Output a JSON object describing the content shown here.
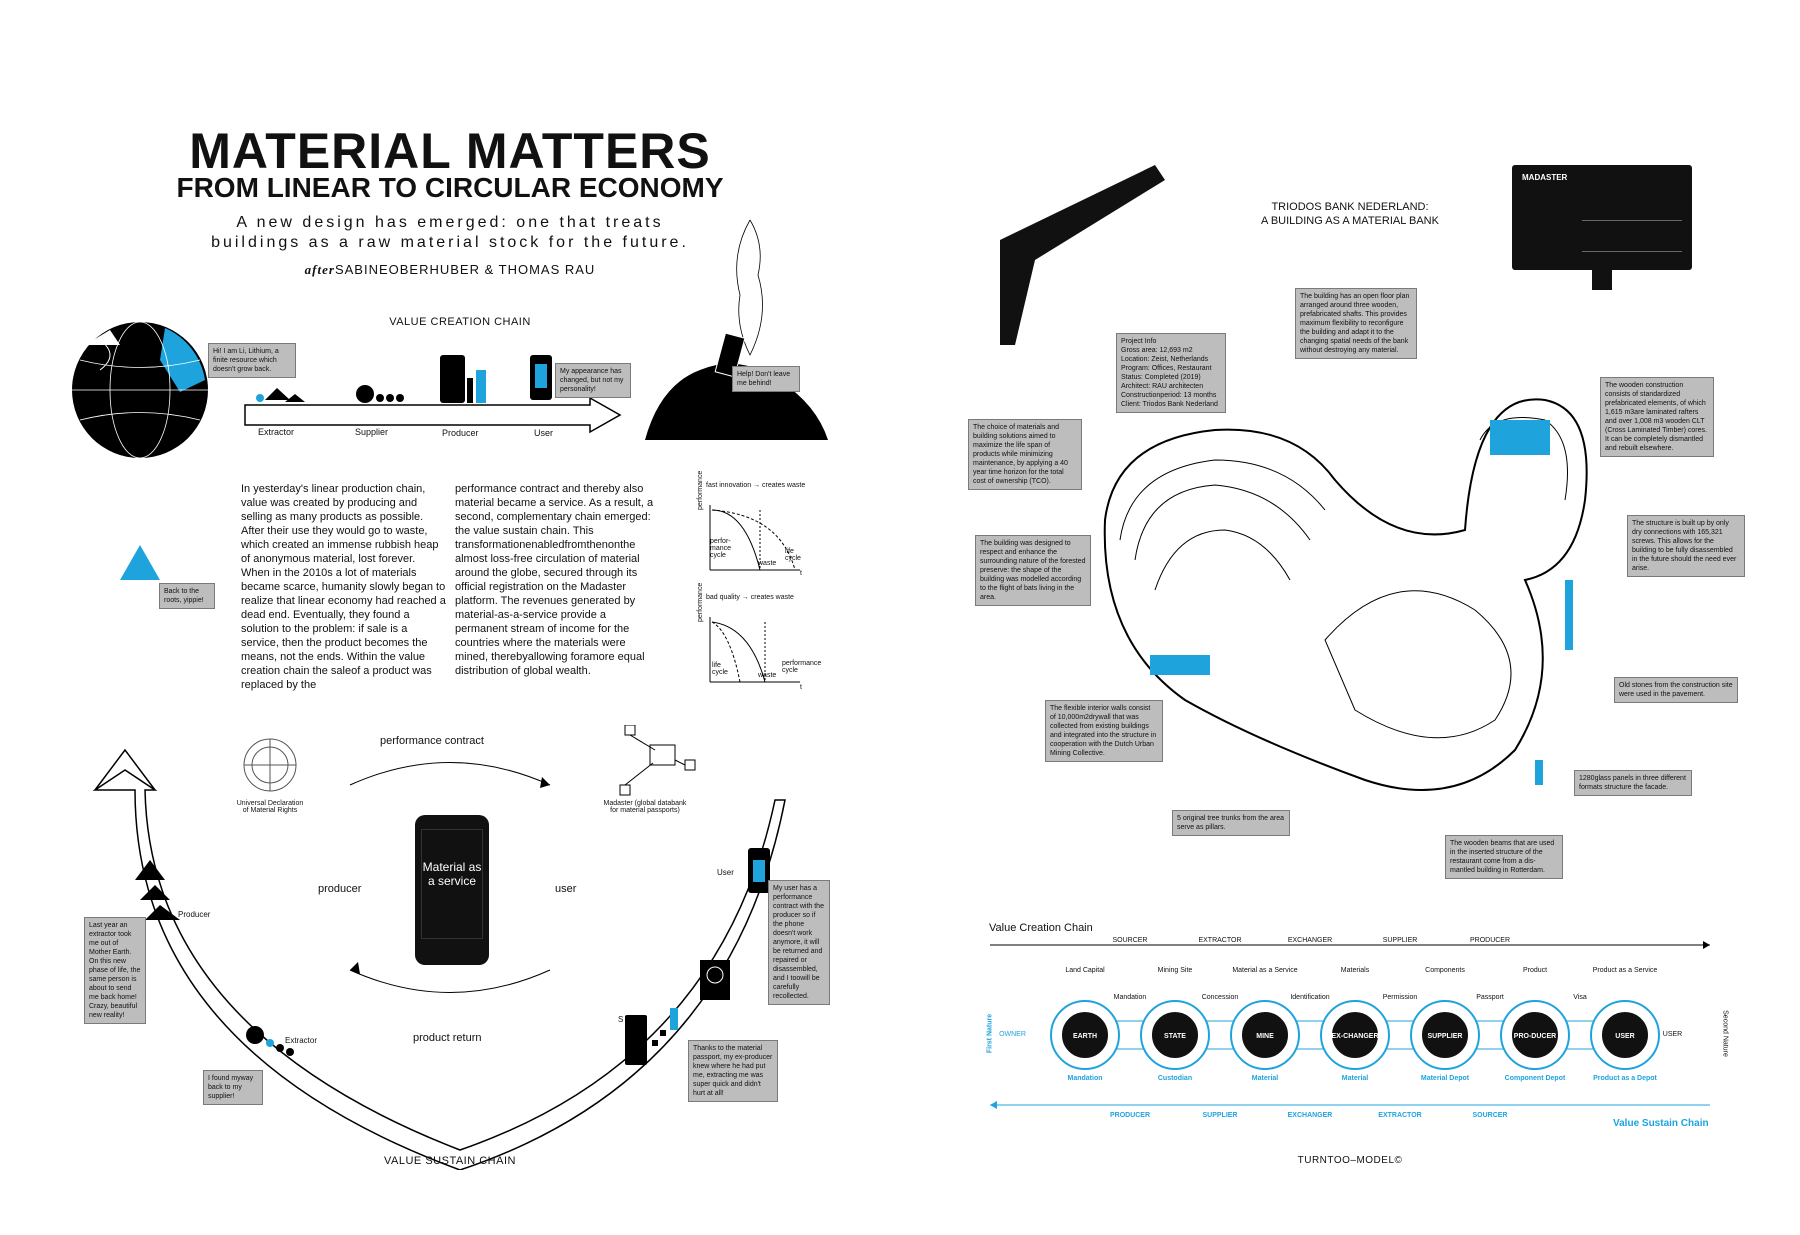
{
  "poster": {
    "title": "MATERIAL MATTERS",
    "subtitle": "FROM LINEAR TO CIRCULAR ECONOMY",
    "tagline": "A new design has emerged: one that treats buildings as a raw material stock for the future.",
    "authors_prefix": "after",
    "authors": "SABINEOBERHUBER & THOMAS RAU"
  },
  "value_creation": {
    "heading": "VALUE CREATION CHAIN",
    "stages": [
      "Extractor",
      "Supplier",
      "Producer",
      "User"
    ],
    "bubble_lithium": "Hi! I am Li, Lithium, a finite resource which doesn't grow back.",
    "bubble_user": "My appearance has changed, but not my personality!",
    "bubble_help": "Help! Don't leave me behind!",
    "bubble_back": "Back to the roots, yippie!"
  },
  "body": {
    "col1": "In yesterday's linear production chain, value was created by producing and selling as many products as possible. After their use they would go to waste, which created an immense rubbish heap of anonymous material, lost forever. When in the 2010s a lot of materials became scarce, humanity slowly began to realize that linear economy had reached a dead end. Eventually, they found a solution to the problem: if sale is a service, then the product becomes the means, not the ends. Within the value creation chain the saleof a product was replaced by the",
    "col2": "performance contract and thereby also material became a service. As a result, a second, complementary chain emerged: the value sustain chain. This transformationenabledfromthenonthe almost loss-free circulation of material around the globe, secured through its official registration on the Madaster platform. The revenues generated by material-as-a-service provide a permanent stream of income for the countries where the materials were mined, therebyallowing foramore equal distribution of global wealth."
  },
  "graphs": [
    {
      "title": "fast innovation → creates waste",
      "ylabel": "performance",
      "xlabel": "t",
      "labels": [
        "perfor-mance cycle",
        "waste",
        "life cycle"
      ]
    },
    {
      "title": "bad quality → creates waste",
      "ylabel": "performance",
      "xlabel": "t",
      "labels": [
        "life cycle",
        "waste",
        "performance cycle"
      ]
    }
  ],
  "sustain": {
    "heading": "VALUE SUSTAIN CHAIN",
    "performance_contract": "performance contract",
    "product_return": "product return",
    "producer": "producer",
    "user": "user",
    "phone_text": "Material as a service",
    "un_label": "Universal Declaration of Material Rights",
    "madaster_label": "Madaster (global databank for material passports)",
    "label_user": "User",
    "label_producer": "Producer",
    "label_extractor": "Extractor",
    "label_s": "S",
    "note_user": "My user has a performance contract with the producer so if the phone doesn't work anymore, it will be returned and repaired or disassembled, and I toowill be carefully recollected.",
    "note_passport": "Thanks to the material passport, my ex-producer knew where he had put me, extracting me was super quick and didn't hurt at all!",
    "note_extractor": "Last year an extractor took me out of Mother Earth. On this new phase of life, the same person is about to send me back home! Crazy, beautiful new reality!",
    "note_found": "I found myway back to my supplier!"
  },
  "triodos": {
    "heading_line1": "TRIODOS BANK NEDERLAND:",
    "heading_line2": "A BUILDING AS A MATERIAL BANK",
    "madaster_screen": "MADASTER",
    "project_info": "Project Info\nGross area: 12,693 m2\nLocation: Zeist, Netherlands\nProgram: Offices, Restaurant\nStatus: Completed (2019)\nArchitect: RAU architecten\nConstructionperiod: 13 months\nClient: Triodos Bank Nederland",
    "note_floorplan": "The building has an open floor plan arranged around three wooden, prefabricated shafts. This provides maximum flexibility to reconfigure the building and adapt it to the changing spatial needs of the bank without destroying any material.",
    "note_choice": "The choice of materials and building solutions aimed to maximize the life span of products while minimizing maintenance, by applying a 40 year time horizon for the total cost of ownership (TCO).",
    "note_wooden": "The wooden construction consists of standardized prefabricated elements, of which 1,615 m3are laminated rafters and over 1,008 m3 wooden CLT (Cross Laminated Timber) cores. It can be completely dismantled and rebuilt elsewhere.",
    "note_forest": "The building was designed to respect and enhance the surrounding nature of the forested preserve: the shape of the building was modelled according to the flight of bats living in the area.",
    "note_screws": "The structure is built up by only dry connections with 165,321 screws. This allows for the building to be fully disassembled in the future should the need ever arise.",
    "note_stones": "Old stones from the construction site were used in the pavement.",
    "note_walls": "The flexible interior walls consist of 10,000m2drywall that was collected from existing buildings and integrated into the structure in cooperation with the Dutch Urban Mining Collective.",
    "note_glass": "1280glass panels in three different formats structure the facade.",
    "note_trunks": "5 original tree trunks from the area serve as pillars.",
    "note_beams": "The wooden beams that are used in the inserted structure of the restaurant come from a dis-mantled building in Rotterdam."
  },
  "turntoo": {
    "heading": "Value Creation Chain",
    "top_roles": [
      "SOURCER",
      "EXTRACTOR",
      "EXCHANGER",
      "SUPPLIER",
      "PRODUCER"
    ],
    "top_items": [
      "Land Capital",
      "Mining Site",
      "Material as a Service",
      "Materials",
      "Components",
      "Product",
      "Product as a Service"
    ],
    "mid_items": [
      "Mandation",
      "Concession",
      "Identification",
      "Permission",
      "Passport",
      "Visa"
    ],
    "circles": [
      "EARTH",
      "STATE",
      "MINE",
      "EX-CHANGER",
      "SUPPLIER",
      "PRO-DUCER",
      "USER"
    ],
    "owner": "OWNER",
    "user_side": "USER",
    "first_nature": "First Nature",
    "second_nature": "Second Nature",
    "bottom_items": [
      "Mandation",
      "Custodian",
      "Material",
      "Material",
      "Material Depot",
      "Component Depot",
      "Product as a Depot"
    ],
    "bottom_roles": [
      "PRODUCER",
      "SUPPLIER",
      "EXCHANGER",
      "EXTRACTOR",
      "SOURCER"
    ],
    "sustain_label": "Value Sustain Chain",
    "caption": "TURNTOO–MODEL©",
    "accent": "#1fa3dd"
  }
}
